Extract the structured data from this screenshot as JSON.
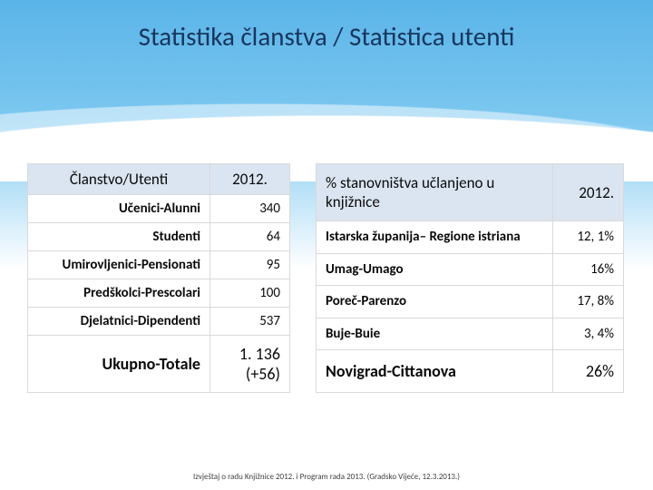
{
  "title": "Statistika članstva / Statistica utenti",
  "table1": {
    "header_left": "Članstvo/Utenti",
    "header_right": "2012.",
    "rows": [
      {
        "label": "Učenici-Alunni",
        "value": "340"
      },
      {
        "label": "Studenti",
        "value": "64"
      },
      {
        "label": "Umirovljenici-Pensionati",
        "value": "95"
      },
      {
        "label": "Predškolci-Prescolari",
        "value": "100"
      },
      {
        "label": "Djelatnici-Dipendenti",
        "value": "537"
      },
      {
        "label": "Ukupno-Totale",
        "value": "1. 136 (+56)"
      }
    ]
  },
  "table2": {
    "header_left": "% stanovništva učlanjeno u knjižnice",
    "header_right": "2012.",
    "rows": [
      {
        "label": "Istarska županija– Regione istriana",
        "value": "12, 1%"
      },
      {
        "label": "Umag-Umago",
        "value": "16%"
      },
      {
        "label": "Poreč-Parenzo",
        "value": "17, 8%"
      },
      {
        "label": "Buje-Buie",
        "value": "3, 4%"
      },
      {
        "label": "Novigrad-Cittanova",
        "value": "26%"
      }
    ]
  },
  "footer": "Izvještaj o radu Knjižnice 2012. i Program rada 2013. (Gradsko Vijeće, 12.3.2013.)",
  "style": {
    "bg_gradient_top": "#5ab4e8",
    "bg_gradient_mid": "#7dc8f0",
    "bg_gradient_bottom": "#ffffff",
    "title_color": "#17365d",
    "title_fontsize": 29,
    "header_bg": "#dbe5f1",
    "cell_border": "#d9d9d9",
    "cell_fontsize": 15,
    "header_fontsize": 17,
    "bigrow_fontsize": 18,
    "footer_fontsize": 9,
    "footer_color": "#404040"
  }
}
